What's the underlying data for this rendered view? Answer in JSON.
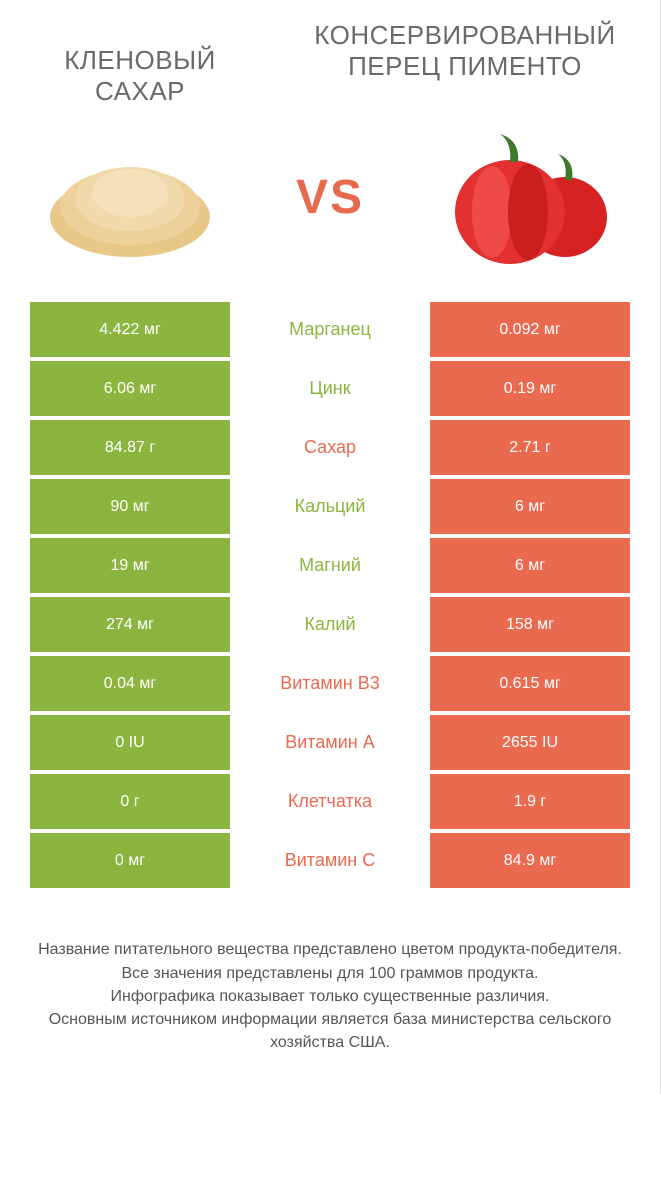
{
  "header": {
    "left_title": "Кленовый сахар",
    "right_title": "Консервированный перец Пименто",
    "vs": "VS"
  },
  "colors": {
    "left": "#8bb53f",
    "right": "#ea6a4f",
    "vs_text": "#e66a4e",
    "row_gap": "#ffffff"
  },
  "images": {
    "left_alt": "maple-sugar-pile",
    "right_alt": "red-peppers"
  },
  "table": {
    "rows": [
      {
        "left": "4.422 мг",
        "label": "Марганец",
        "right": "0.092 мг",
        "winner": "left"
      },
      {
        "left": "6.06 мг",
        "label": "Цинк",
        "right": "0.19 мг",
        "winner": "left"
      },
      {
        "left": "84.87 г",
        "label": "Сахар",
        "right": "2.71 г",
        "winner": "right"
      },
      {
        "left": "90 мг",
        "label": "Кальций",
        "right": "6 мг",
        "winner": "left"
      },
      {
        "left": "19 мг",
        "label": "Магний",
        "right": "6 мг",
        "winner": "left"
      },
      {
        "left": "274 мг",
        "label": "Калий",
        "right": "158 мг",
        "winner": "left"
      },
      {
        "left": "0.04 мг",
        "label": "Витамин B3",
        "right": "0.615 мг",
        "winner": "right"
      },
      {
        "left": "0 IU",
        "label": "Витамин A",
        "right": "2655 IU",
        "winner": "right"
      },
      {
        "left": "0 г",
        "label": "Клетчатка",
        "right": "1.9 г",
        "winner": "right"
      },
      {
        "left": "0 мг",
        "label": "Витамин C",
        "right": "84.9 мг",
        "winner": "right"
      }
    ]
  },
  "footer": {
    "line1": "Название питательного вещества представлено цветом продукта-победителя.",
    "line2": "Все значения представлены для 100 граммов продукта.",
    "line3": "Инфографика показывает только существенные различия.",
    "line4": "Основным источником информации является база министерства сельского хозяйства США."
  }
}
